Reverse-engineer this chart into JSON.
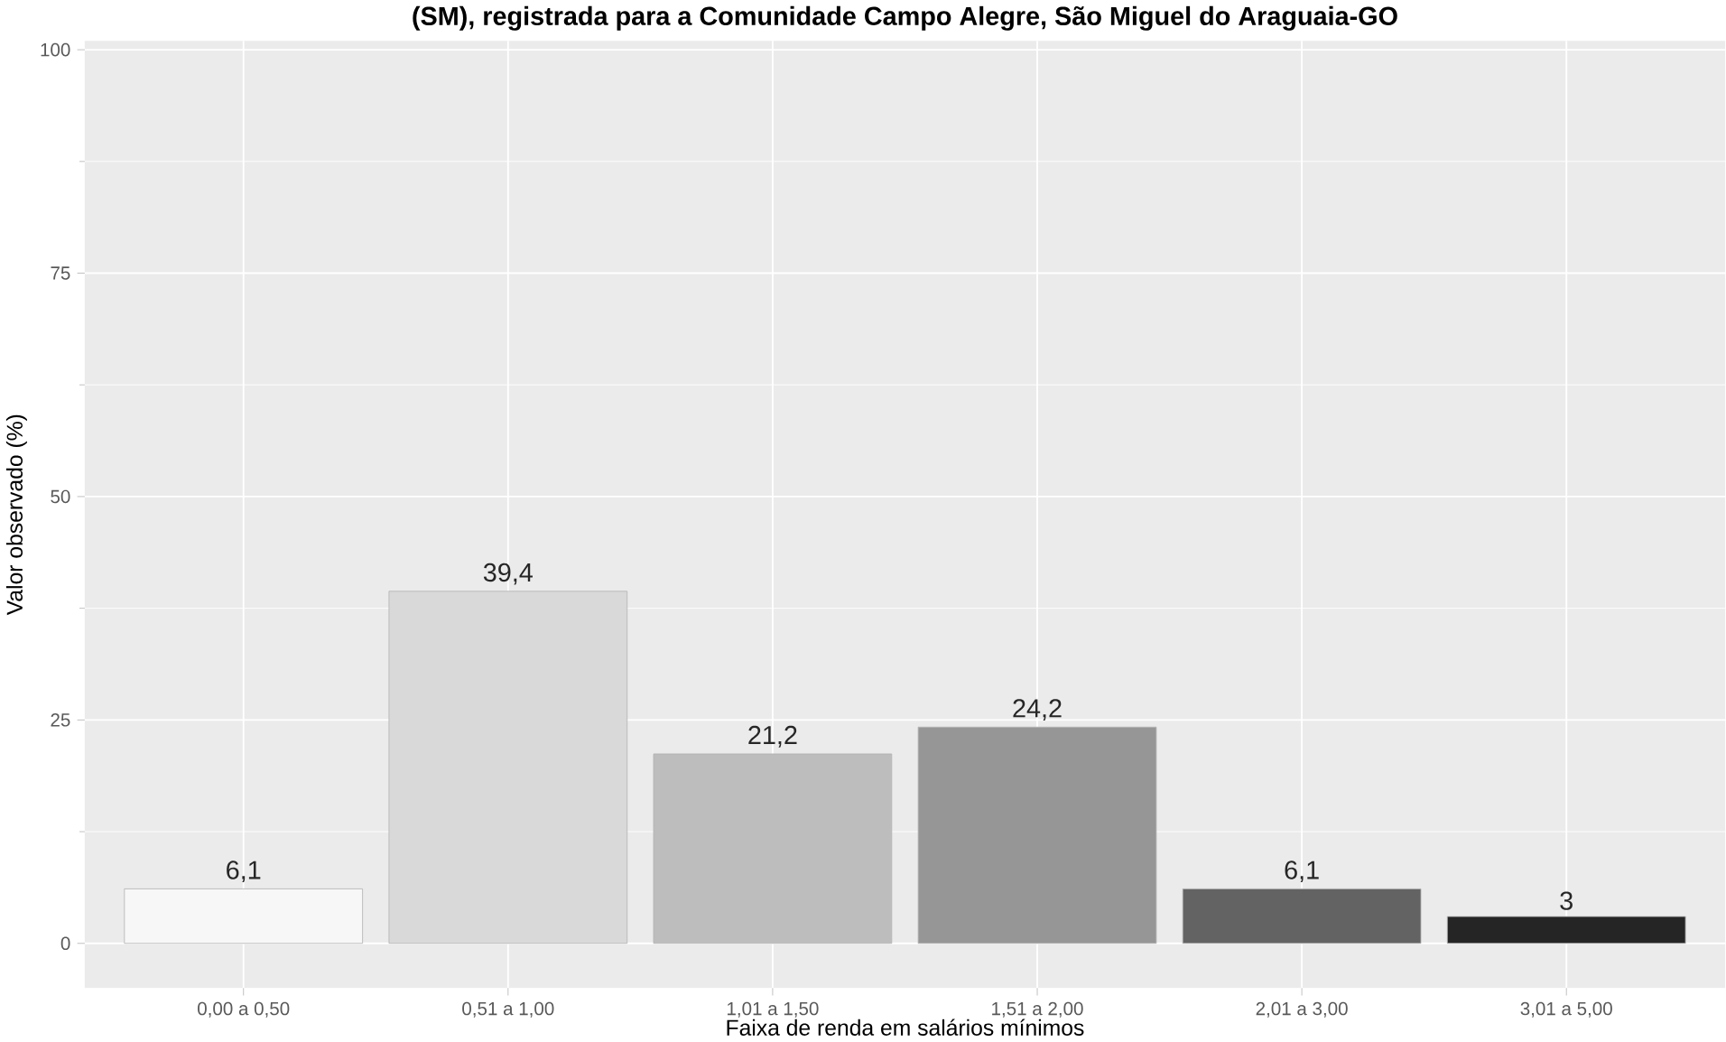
{
  "chart_data": {
    "type": "bar",
    "title": "(SM), registrada para a Comunidade Campo Alegre, São Miguel do Araguaia-GO",
    "xlabel": "Faixa de renda em salários mínimos",
    "ylabel": "Valor observado (%)",
    "categories": [
      "0,00 a 0,50",
      "0,51 a 1,00",
      "1,01 a 1,50",
      "1,51 a 2,00",
      "2,01 a 3,00",
      "3,01 a 5,00"
    ],
    "values": [
      6.1,
      39.4,
      21.2,
      24.2,
      6.1,
      3
    ],
    "value_labels": [
      "6,1",
      "39,4",
      "21,2",
      "24,2",
      "6,1",
      "3"
    ],
    "colors": [
      "#f7f7f7",
      "#d9d9d9",
      "#bdbdbd",
      "#969696",
      "#636363",
      "#252525"
    ],
    "ylim": [
      -5,
      101
    ],
    "yticks": [
      0,
      25,
      50,
      75,
      100
    ],
    "grid": true
  }
}
